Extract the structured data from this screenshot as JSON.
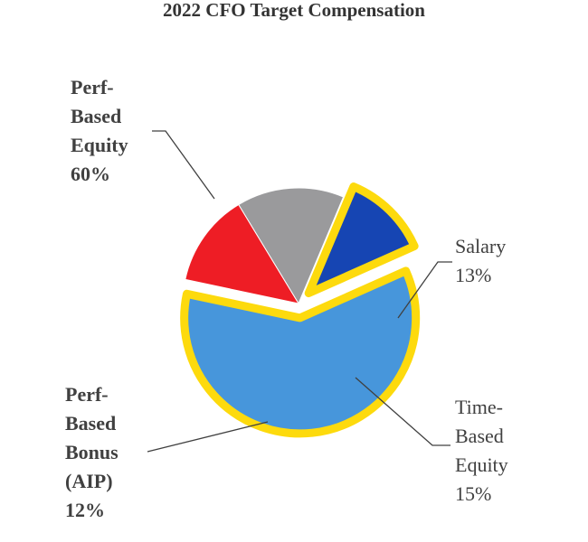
{
  "chart_data": {
    "type": "pie",
    "title": "2022 CFO Target Compensation",
    "slices": [
      {
        "name": "Perf-Based Equity",
        "value": 60,
        "value_label": "60%",
        "label_lines": [
          "Perf-",
          "Based",
          "Equity",
          "60%"
        ],
        "color": "#4796DB",
        "highlight": true
      },
      {
        "name": "Salary",
        "value": 13,
        "value_label": "13%",
        "label_lines": [
          "Salary",
          "13%"
        ],
        "color": "#EE1D25",
        "highlight": false
      },
      {
        "name": "Time-Based Equity",
        "value": 15,
        "value_label": "15%",
        "label_lines": [
          "Time-",
          "Based",
          "Equity",
          "15%"
        ],
        "color": "#9A9A9C",
        "highlight": false
      },
      {
        "name": "Perf-Based Bonus (AIP)",
        "value": 12,
        "value_label": "12%",
        "label_lines": [
          "Perf-",
          "Based",
          "Bonus",
          "(AIP)",
          "12%"
        ],
        "color": "#1645B3",
        "highlight": true
      }
    ],
    "highlight_color": "#FDDA0D",
    "legend": "none"
  }
}
